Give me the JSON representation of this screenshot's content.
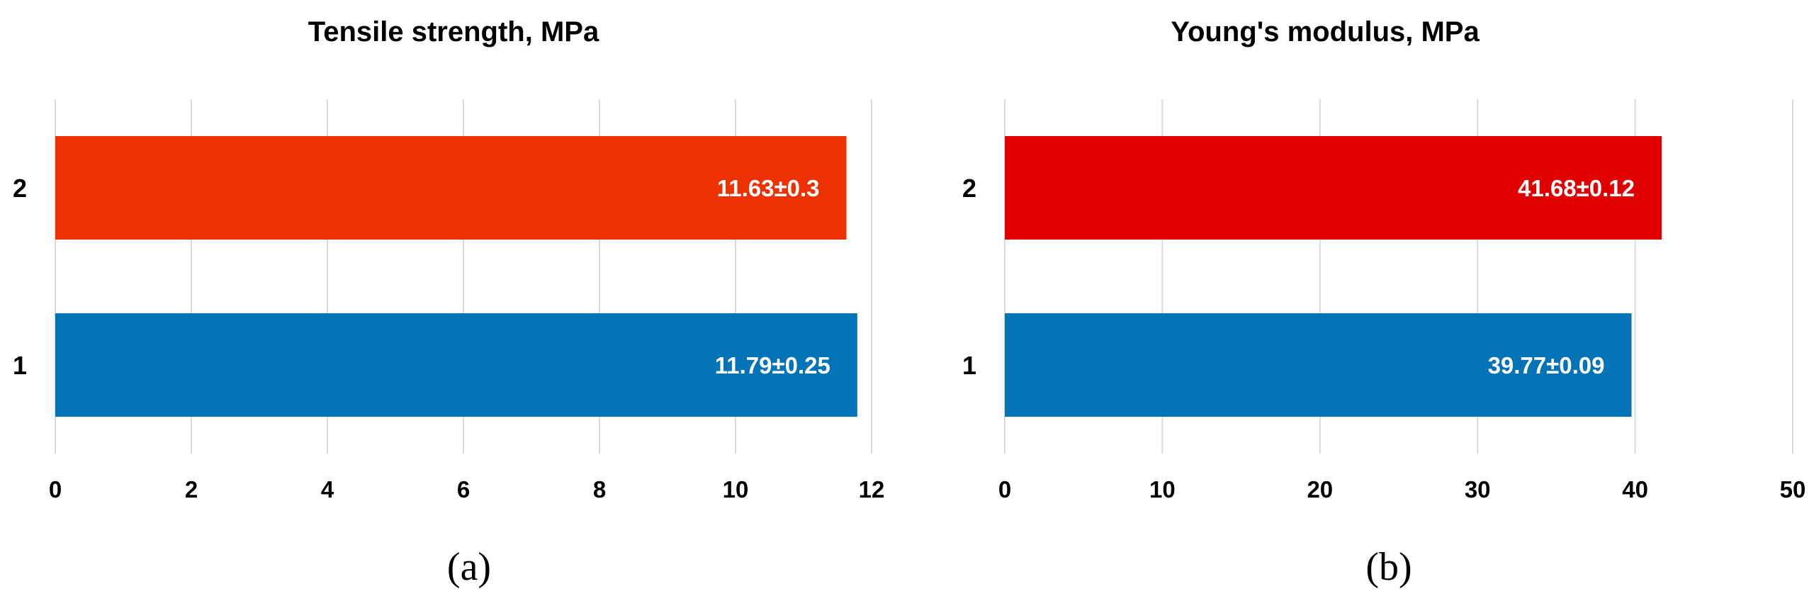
{
  "chart_data": [
    {
      "type": "bar",
      "orientation": "horizontal",
      "panel_label": "(a)",
      "title": "Tensile strength, MPa",
      "categories": [
        "1",
        "2"
      ],
      "values": [
        11.79,
        11.63
      ],
      "value_labels": [
        "11.79±0.25",
        "11.63±0.3"
      ],
      "colors": [
        "#0173b6",
        "#ee3100"
      ],
      "xlim": [
        0,
        12
      ],
      "xticks": [
        0,
        2,
        4,
        6,
        8,
        10,
        12
      ],
      "grid": "vertical"
    },
    {
      "type": "bar",
      "orientation": "horizontal",
      "panel_label": "(b)",
      "title": "Young's modulus, MPa",
      "categories": [
        "1",
        "2"
      ],
      "values": [
        39.77,
        41.68
      ],
      "value_labels": [
        "39.77±0.09",
        "41.68±0.12"
      ],
      "colors": [
        "#0173b6",
        "#e00000"
      ],
      "xlim": [
        0,
        50
      ],
      "xticks": [
        0,
        10,
        20,
        30,
        40,
        50
      ],
      "grid": "vertical"
    }
  ]
}
